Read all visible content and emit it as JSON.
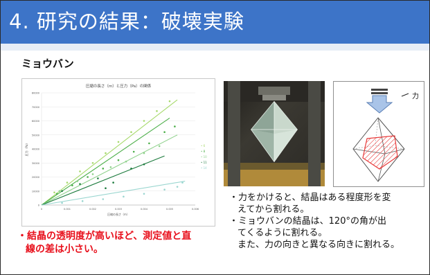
{
  "slide": {
    "title": "4. 研究の結果：破壊実験",
    "section": "ミョウバン",
    "chart": {
      "title": "圧縮の長さ（m）と圧力（Pa）の関係",
      "xlabel": "圧縮の長さ（m）",
      "ylabel": "圧力（Pa）",
      "x_ticks": [
        "0",
        "0.001",
        "0.002",
        "0.003",
        "0.004",
        "0.005",
        "0.006"
      ],
      "y_ticks": [
        "0",
        "10000",
        "20000",
        "30000",
        "40000",
        "50000",
        "60000",
        "70000",
        "80000"
      ],
      "legend": [
        "• 6",
        "• 8",
        "• 10",
        "• 11",
        "• 14"
      ]
    },
    "force_label": "力",
    "description": [
      "・力をかけると、結晶はある程度形を変",
      "えてから割れる。",
      "・ミョウバンの結晶は、120°の角が出",
      "てくるように割れる。",
      "また、力の向きと異なる向きに割れる。"
    ],
    "conclusion": [
      "・結晶の透明度が高いほど、測定値と直",
      "線の差は小さい。"
    ],
    "colors": {
      "title_bar": "#3d74c8",
      "conclusion": "#e8101c"
    }
  },
  "chart_data": {
    "type": "scatter",
    "title": "圧縮の長さ（m）と圧力（Pa）の関係",
    "xlabel": "圧縮の長さ（m）",
    "ylabel": "圧力（Pa）",
    "xlim": [
      0,
      0.006
    ],
    "ylim": [
      0,
      80000
    ],
    "series": [
      {
        "name": "6",
        "color": "#a6d96a",
        "points": [
          [
            0.0005,
            9000
          ],
          [
            0.001,
            16000
          ],
          [
            0.0015,
            24000
          ],
          [
            0.002,
            30000
          ],
          [
            0.0025,
            37000
          ],
          [
            0.003,
            45000
          ],
          [
            0.0035,
            52000
          ],
          [
            0.004,
            60000
          ],
          [
            0.0045,
            67000
          ],
          [
            0.005,
            74000
          ]
        ],
        "trend": [
          [
            0,
            0
          ],
          [
            0.0053,
            75000
          ]
        ]
      },
      {
        "name": "8",
        "color": "#4daf4a",
        "points": [
          [
            0.0006,
            8000
          ],
          [
            0.0012,
            14000
          ],
          [
            0.0018,
            20000
          ],
          [
            0.0024,
            26000
          ],
          [
            0.003,
            32000
          ],
          [
            0.0036,
            38000
          ],
          [
            0.0042,
            44000
          ],
          [
            0.0048,
            52000
          ],
          [
            0.0052,
            56000
          ]
        ],
        "trend": [
          [
            0,
            0
          ],
          [
            0.005,
            62000
          ]
        ]
      },
      {
        "name": "10",
        "color": "#8fd18c",
        "points": [
          [
            0.0007,
            10000
          ],
          [
            0.0014,
            17000
          ],
          [
            0.002,
            22000
          ],
          [
            0.0027,
            27000
          ],
          [
            0.0033,
            31000
          ],
          [
            0.004,
            37000
          ],
          [
            0.0046,
            42000
          ]
        ],
        "trend": [
          [
            0,
            0
          ],
          [
            0.0053,
            50000
          ]
        ]
      },
      {
        "name": "11",
        "color": "#1b7a3c",
        "points": [
          [
            0.0008,
            10000
          ],
          [
            0.0015,
            15000
          ],
          [
            0.0022,
            19000
          ],
          [
            0.0028,
            16000
          ],
          [
            0.0025,
            12000
          ],
          [
            0.0035,
            26000
          ],
          [
            0.004,
            29000
          ]
        ],
        "trend": [
          [
            0,
            0
          ],
          [
            0.0048,
            35000
          ]
        ]
      },
      {
        "name": "14",
        "color": "#9ad6d0",
        "points": [
          [
            0.0008,
            1500
          ],
          [
            0.0016,
            2800
          ],
          [
            0.0024,
            4200
          ],
          [
            0.0032,
            6000
          ],
          [
            0.004,
            8000
          ],
          [
            0.0048,
            11000
          ],
          [
            0.0053,
            13000
          ],
          [
            0.0055,
            16000
          ]
        ],
        "trend": [
          [
            0,
            0
          ],
          [
            0.0056,
            17000
          ]
        ]
      }
    ]
  }
}
